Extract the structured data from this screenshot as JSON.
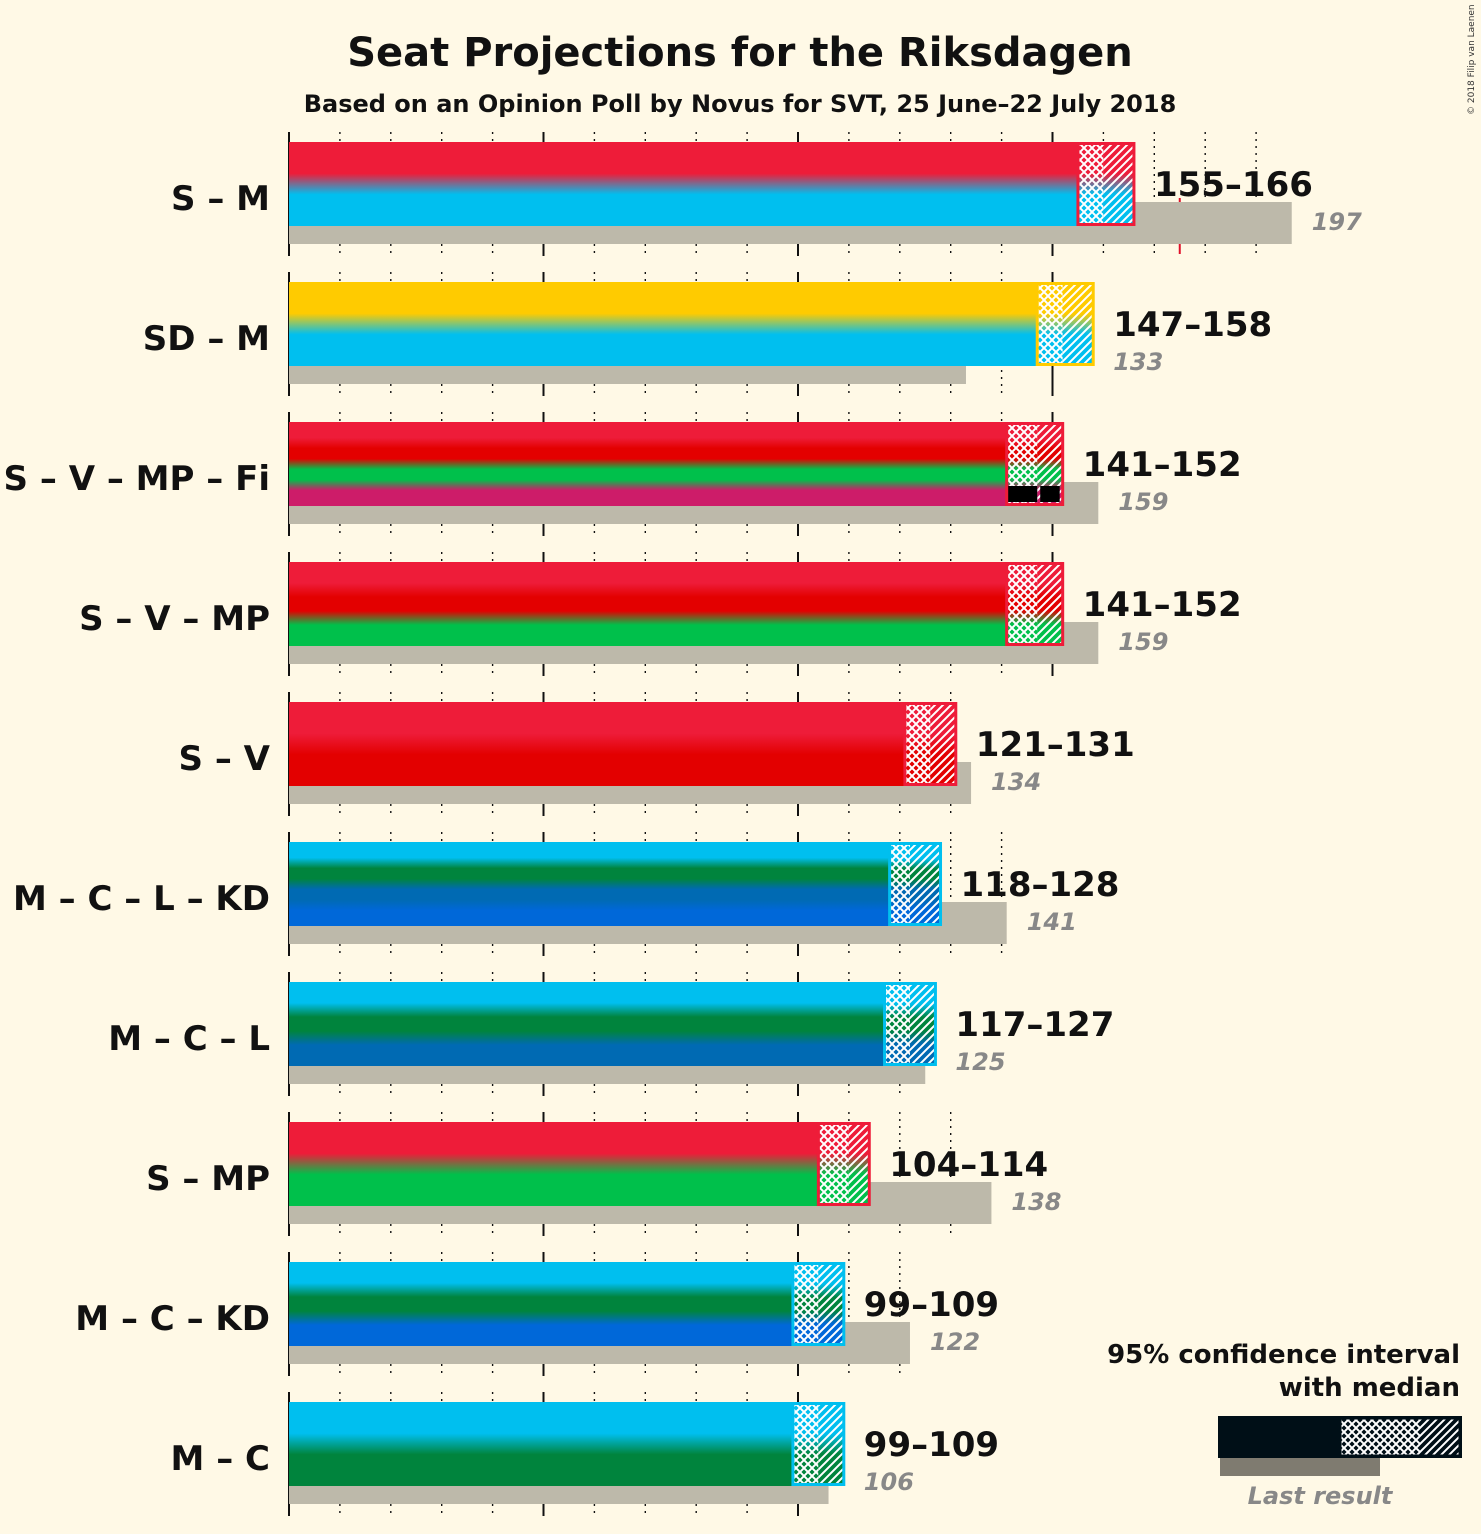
{
  "title": "Seat Projections for the Riksdagen",
  "subtitle": "Based on an Opinion Poll by Novus for SVT, 25 June–22 July 2018",
  "copyright": "© 2018 Filip van Laenen",
  "legend": {
    "line1": "95% confidence interval",
    "line2": "with median",
    "last_result": "Last result"
  },
  "colors": {
    "S": "#ee1c39",
    "M": "#00bfef",
    "SD": "#ffcb00",
    "V": "#e30000",
    "MP": "#00c04b",
    "Fi": "#cd1c69",
    "C": "#00843d",
    "L": "#006ab3",
    "KD": "#0068d9",
    "last_bar": "#bdb9aa",
    "majority_line": "#e0102a",
    "background": "#fff9e6"
  },
  "chart_data": {
    "type": "bar",
    "orientation": "horizontal",
    "x_range": [
      0,
      197
    ],
    "majority": 175,
    "categories": [
      "S – M",
      "SD – M",
      "S – V – MP – Fi",
      "S – V – MP",
      "S – V",
      "M – C – L – KD",
      "M – C – L",
      "S – MP",
      "M – C – KD",
      "M – C"
    ],
    "coalitions": [
      {
        "label": "S – M",
        "parties": [
          "S",
          "M"
        ],
        "low": 155,
        "median": 160,
        "high": 166,
        "range_label": "155–166",
        "last": 197,
        "last_label": "197"
      },
      {
        "label": "SD – M",
        "parties": [
          "SD",
          "M"
        ],
        "low": 147,
        "median": 152,
        "high": 158,
        "range_label": "147–158",
        "last": 133,
        "last_label": "133"
      },
      {
        "label": "S – V – MP – Fi",
        "parties": [
          "S",
          "V",
          "MP",
          "Fi"
        ],
        "low": 141,
        "median": 147,
        "high": 152,
        "range_label": "141–152",
        "last": 159,
        "last_label": "159",
        "dark_strip": true
      },
      {
        "label": "S – V – MP",
        "parties": [
          "S",
          "V",
          "MP"
        ],
        "low": 141,
        "median": 147,
        "high": 152,
        "range_label": "141–152",
        "last": 159,
        "last_label": "159"
      },
      {
        "label": "S – V",
        "parties": [
          "S",
          "V"
        ],
        "low": 121,
        "median": 126,
        "high": 131,
        "range_label": "121–131",
        "last": 134,
        "last_label": "134"
      },
      {
        "label": "M – C – L – KD",
        "parties": [
          "M",
          "C",
          "L",
          "KD"
        ],
        "low": 118,
        "median": 122,
        "high": 128,
        "range_label": "118–128",
        "last": 141,
        "last_label": "141"
      },
      {
        "label": "M – C – L",
        "parties": [
          "M",
          "C",
          "L"
        ],
        "low": 117,
        "median": 122,
        "high": 127,
        "range_label": "117–127",
        "last": 125,
        "last_label": "125"
      },
      {
        "label": "S – MP",
        "parties": [
          "S",
          "MP"
        ],
        "low": 104,
        "median": 110,
        "high": 114,
        "range_label": "104–114",
        "last": 138,
        "last_label": "138"
      },
      {
        "label": "M – C – KD",
        "parties": [
          "M",
          "C",
          "KD"
        ],
        "low": 99,
        "median": 104,
        "high": 109,
        "range_label": "99–109",
        "last": 122,
        "last_label": "122"
      },
      {
        "label": "M – C",
        "parties": [
          "M",
          "C"
        ],
        "low": 99,
        "median": 104,
        "high": 109,
        "range_label": "99–109",
        "last": 106,
        "last_label": "106"
      }
    ]
  }
}
